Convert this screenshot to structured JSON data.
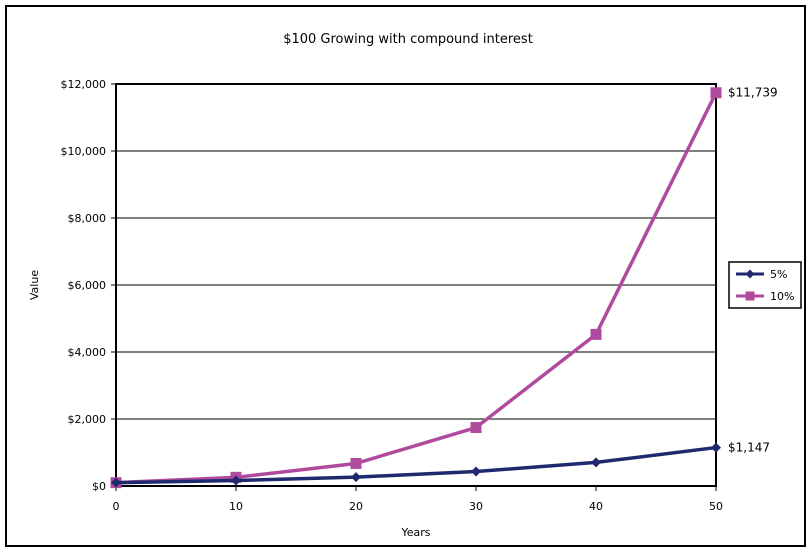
{
  "chart_data": {
    "type": "line",
    "title": "$100 Growing with compound interest",
    "xlabel": "Years",
    "ylabel": "Value",
    "x": [
      0,
      10,
      20,
      30,
      40,
      50
    ],
    "xlim": [
      0,
      50
    ],
    "ylim": [
      0,
      12000
    ],
    "x_ticks": [
      0,
      10,
      20,
      30,
      40,
      50
    ],
    "y_ticks": [
      0,
      2000,
      4000,
      6000,
      8000,
      10000,
      12000
    ],
    "y_tick_labels": [
      "$0",
      "$2,000",
      "$4,000",
      "$6,000",
      "$8,000",
      "$10,000",
      "$12,000"
    ],
    "grid": "horizontal",
    "legend_position": "right",
    "series": [
      {
        "name": "5%",
        "values": [
          100,
          163,
          265,
          432,
          704,
          1147
        ],
        "color": "#1f2a6e",
        "marker": "diamond",
        "end_label": "$1,147"
      },
      {
        "name": "10%",
        "values": [
          100,
          259,
          673,
          1745,
          4526,
          11739
        ],
        "color": "#b04a9e",
        "marker": "square",
        "end_label": "$11,739"
      }
    ]
  }
}
